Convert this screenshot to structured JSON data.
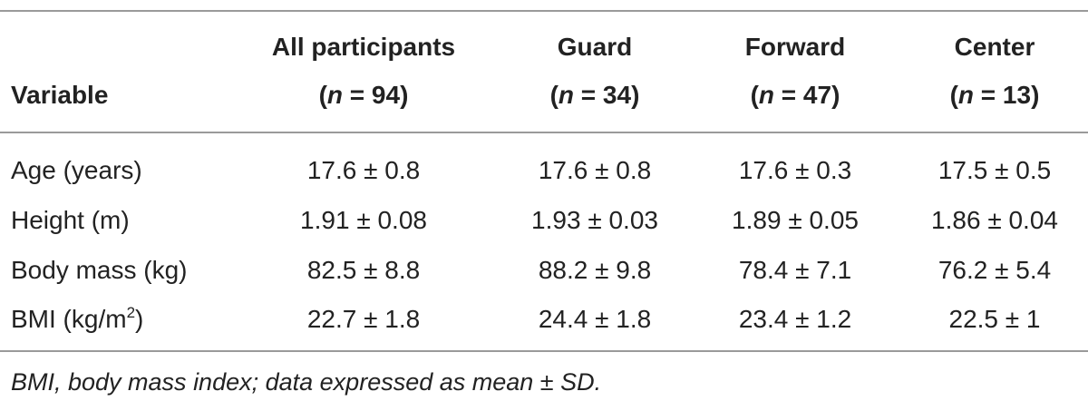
{
  "table": {
    "header": {
      "variable": "Variable",
      "columns": [
        {
          "name": "All participants",
          "n_prefix": "(",
          "n_letter": "n",
          "n_suffix": " = 94)"
        },
        {
          "name": "Guard",
          "n_prefix": "(",
          "n_letter": "n",
          "n_suffix": " = 34)"
        },
        {
          "name": "Forward",
          "n_prefix": "(",
          "n_letter": "n",
          "n_suffix": " = 47)"
        },
        {
          "name": "Center",
          "n_prefix": "(",
          "n_letter": "n",
          "n_suffix": " = 13)"
        }
      ]
    },
    "rows": [
      {
        "label": "Age (years)",
        "values": [
          "17.6 ± 0.8",
          "17.6 ± 0.8",
          "17.6 ± 0.3",
          "17.5 ± 0.5"
        ]
      },
      {
        "label": "Height (m)",
        "values": [
          "1.91 ± 0.08",
          "1.93 ± 0.03",
          "1.89 ± 0.05",
          "1.86 ± 0.04"
        ]
      },
      {
        "label": "Body mass (kg)",
        "values": [
          "82.5 ± 8.8",
          "88.2 ± 9.8",
          "78.4 ± 7.1",
          "76.2 ± 5.4"
        ]
      },
      {
        "label": "BMI (kg/m",
        "label_sup": "2",
        "label_end": ")",
        "values": [
          "22.7 ± 1.8",
          "24.4 ± 1.8",
          "23.4 ± 1.2",
          "22.5 ± 1"
        ]
      }
    ],
    "footnote": "BMI, body mass index; data expressed as mean ± SD."
  }
}
